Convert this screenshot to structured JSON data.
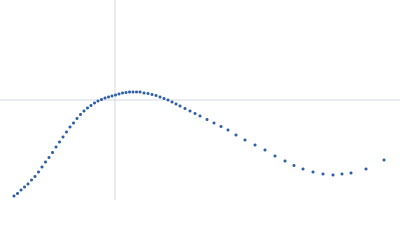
{
  "chart_data": {
    "type": "scatter",
    "color": "#2f5fa8",
    "grid": true,
    "xlim": [
      -1.15,
      2.85
    ],
    "ylim": [
      -1,
      1
    ],
    "xticks": [
      0
    ],
    "yticks": [
      0
    ],
    "x": [
      -1.01,
      -0.975,
      -0.94,
      -0.905,
      -0.87,
      -0.835,
      -0.8,
      -0.765,
      -0.73,
      -0.695,
      -0.66,
      -0.625,
      -0.59,
      -0.555,
      -0.52,
      -0.485,
      -0.45,
      -0.415,
      -0.38,
      -0.345,
      -0.31,
      -0.275,
      -0.24,
      -0.205,
      -0.17,
      -0.135,
      -0.1,
      -0.065,
      -0.03,
      0.005,
      0.04,
      0.075,
      0.11,
      0.145,
      0.18,
      0.215,
      0.25,
      0.29,
      0.33,
      0.37,
      0.41,
      0.45,
      0.49,
      0.53,
      0.57,
      0.61,
      0.65,
      0.7,
      0.75,
      0.8,
      0.85,
      0.92,
      0.99,
      1.06,
      1.13,
      1.21,
      1.3,
      1.4,
      1.5,
      1.6,
      1.7,
      1.79,
      1.88,
      1.98,
      2.08,
      2.18,
      2.27,
      2.36,
      2.51,
      2.69
    ],
    "values": [
      -0.96,
      -0.935,
      -0.9,
      -0.87,
      -0.84,
      -0.8,
      -0.765,
      -0.72,
      -0.67,
      -0.62,
      -0.575,
      -0.525,
      -0.47,
      -0.42,
      -0.37,
      -0.32,
      -0.27,
      -0.23,
      -0.185,
      -0.145,
      -0.11,
      -0.08,
      -0.055,
      -0.03,
      -0.01,
      0.005,
      0.02,
      0.03,
      0.04,
      0.05,
      0.06,
      0.07,
      0.075,
      0.08,
      0.08,
      0.08,
      0.08,
      0.07,
      0.065,
      0.055,
      0.045,
      0.03,
      0.015,
      0,
      -0.02,
      -0.04,
      -0.06,
      -0.085,
      -0.11,
      -0.135,
      -0.16,
      -0.195,
      -0.23,
      -0.265,
      -0.3,
      -0.35,
      -0.4,
      -0.45,
      -0.5,
      -0.56,
      -0.61,
      -0.655,
      -0.69,
      -0.72,
      -0.74,
      -0.75,
      -0.74,
      -0.73,
      -0.69,
      -0.6
    ]
  }
}
